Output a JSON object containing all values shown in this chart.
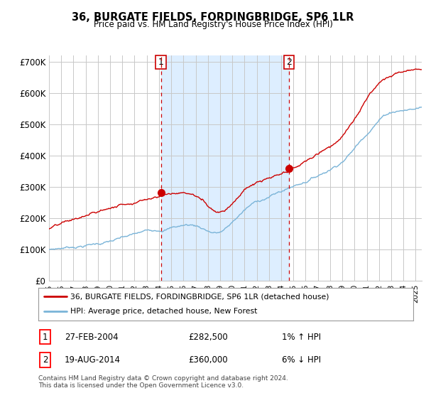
{
  "title": "36, BURGATE FIELDS, FORDINGBRIDGE, SP6 1LR",
  "subtitle": "Price paid vs. HM Land Registry's House Price Index (HPI)",
  "ylabel_ticks": [
    "£0",
    "£100K",
    "£200K",
    "£300K",
    "£400K",
    "£500K",
    "£600K",
    "£700K"
  ],
  "ytick_values": [
    0,
    100000,
    200000,
    300000,
    400000,
    500000,
    600000,
    700000
  ],
  "ylim": [
    0,
    720000
  ],
  "xlim_start": 1995.0,
  "xlim_end": 2025.5,
  "sale1": {
    "date_num": 2004.15,
    "price": 282500,
    "label": "1"
  },
  "sale2": {
    "date_num": 2014.63,
    "price": 360000,
    "label": "2"
  },
  "legend_entry1": "36, BURGATE FIELDS, FORDINGBRIDGE, SP6 1LR (detached house)",
  "legend_entry2": "HPI: Average price, detached house, New Forest",
  "table_rows": [
    [
      "1",
      "27-FEB-2004",
      "£282,500",
      "1% ↑ HPI"
    ],
    [
      "2",
      "19-AUG-2014",
      "£360,000",
      "6% ↓ HPI"
    ]
  ],
  "footnote": "Contains HM Land Registry data © Crown copyright and database right 2024.\nThis data is licensed under the Open Government Licence v3.0.",
  "hpi_color": "#7ab4d8",
  "price_color": "#cc0000",
  "marker_color": "#cc0000",
  "dashed_line_color": "#cc0000",
  "shade_color": "#ddeeff",
  "plot_bg_color": "#ffffff",
  "grid_color": "#c8c8c8"
}
